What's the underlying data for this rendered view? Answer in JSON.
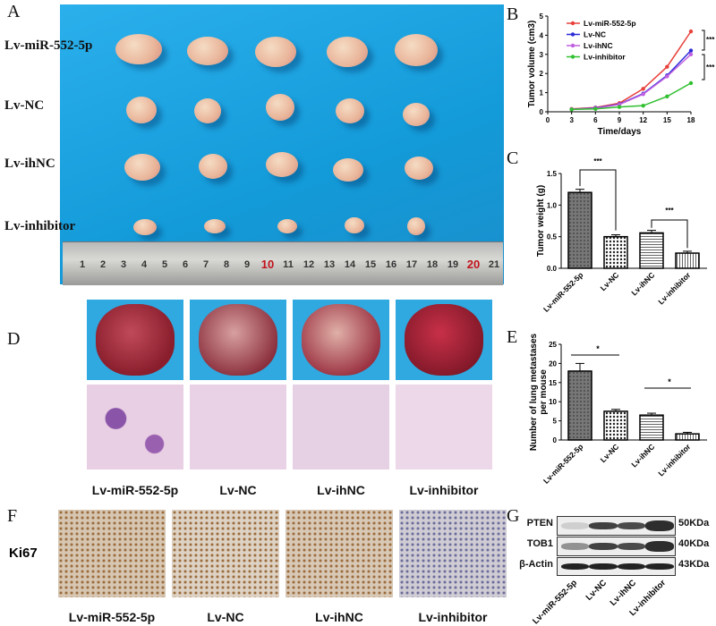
{
  "panel_letters": {
    "a": "A",
    "b": "B",
    "c": "C",
    "d": "D",
    "e": "E",
    "f": "F",
    "g": "G"
  },
  "groups": [
    "Lv-miR-552-5p",
    "Lv-NC",
    "Lv-ihNC",
    "Lv-inhibitor"
  ],
  "ruler_numbers": [
    "1",
    "2",
    "3",
    "4",
    "5",
    "6",
    "7",
    "8",
    "9",
    "10",
    "11",
    "12",
    "13",
    "14",
    "15",
    "16",
    "17",
    "18",
    "19",
    "20",
    "21"
  ],
  "ki67_label": "Ki67",
  "western": {
    "proteins": [
      {
        "name": "PTEN",
        "size": "50KDa"
      },
      {
        "name": "TOB1",
        "size": "40KDa"
      },
      {
        "name": "β-Actin",
        "size": "43KDa"
      }
    ]
  },
  "colors": {
    "miR": "#e8403a",
    "NC": "#2a2ad8",
    "ihNC": "#c060e0",
    "inhibitor": "#30c030",
    "photo_bg": "#1aa3e0"
  },
  "chart_data": [
    {
      "type": "line",
      "title": "",
      "xlabel": "Time/days",
      "ylabel": "Tumor volume (cm3)",
      "x": [
        3,
        6,
        9,
        12,
        15,
        18
      ],
      "xticks": [
        0,
        3,
        6,
        9,
        12,
        15,
        18
      ],
      "yticks": [
        0,
        1,
        2,
        3,
        4,
        5
      ],
      "xlim": [
        0,
        18
      ],
      "ylim": [
        0,
        5
      ],
      "legend": "top-left",
      "series": [
        {
          "name": "Lv-miR-552-5p",
          "values": [
            0.15,
            0.22,
            0.45,
            1.2,
            2.35,
            4.2
          ]
        },
        {
          "name": "Lv-NC",
          "values": [
            0.13,
            0.2,
            0.4,
            0.95,
            1.9,
            3.2
          ]
        },
        {
          "name": "Lv-ihNC",
          "values": [
            0.13,
            0.18,
            0.38,
            0.92,
            1.85,
            3.0
          ]
        },
        {
          "name": "Lv-inhibitor",
          "values": [
            0.12,
            0.15,
            0.25,
            0.32,
            0.8,
            1.5
          ]
        }
      ],
      "annotations": [
        "***",
        "***"
      ]
    },
    {
      "type": "bar",
      "ylabel": "Tumor weight (g)",
      "categories": [
        "Lv-miR-552-5p",
        "Lv-NC",
        "Lv-ihNC",
        "Lv-inhibitor"
      ],
      "values": [
        1.2,
        0.5,
        0.56,
        0.24
      ],
      "errors": [
        0.05,
        0.03,
        0.04,
        0.03
      ],
      "ylim": [
        0,
        1.5
      ],
      "yticks": [
        "0.0",
        "0.5",
        "1.0",
        "1.5"
      ],
      "annotations": [
        "***",
        "***"
      ]
    },
    {
      "type": "bar",
      "ylabel": "Number of lung metastases per mouse",
      "categories": [
        "Lv-miR-552-5p",
        "Lv-NC",
        "Lv-ihNC",
        "Lv-inhibitor"
      ],
      "values": [
        18,
        7.5,
        6.5,
        1.6
      ],
      "errors": [
        2,
        0.5,
        0.5,
        0.4
      ],
      "ylim": [
        0,
        25
      ],
      "yticks": [
        "0",
        "5",
        "10",
        "15",
        "20",
        "25"
      ],
      "annotations": [
        "*",
        "*"
      ]
    }
  ]
}
